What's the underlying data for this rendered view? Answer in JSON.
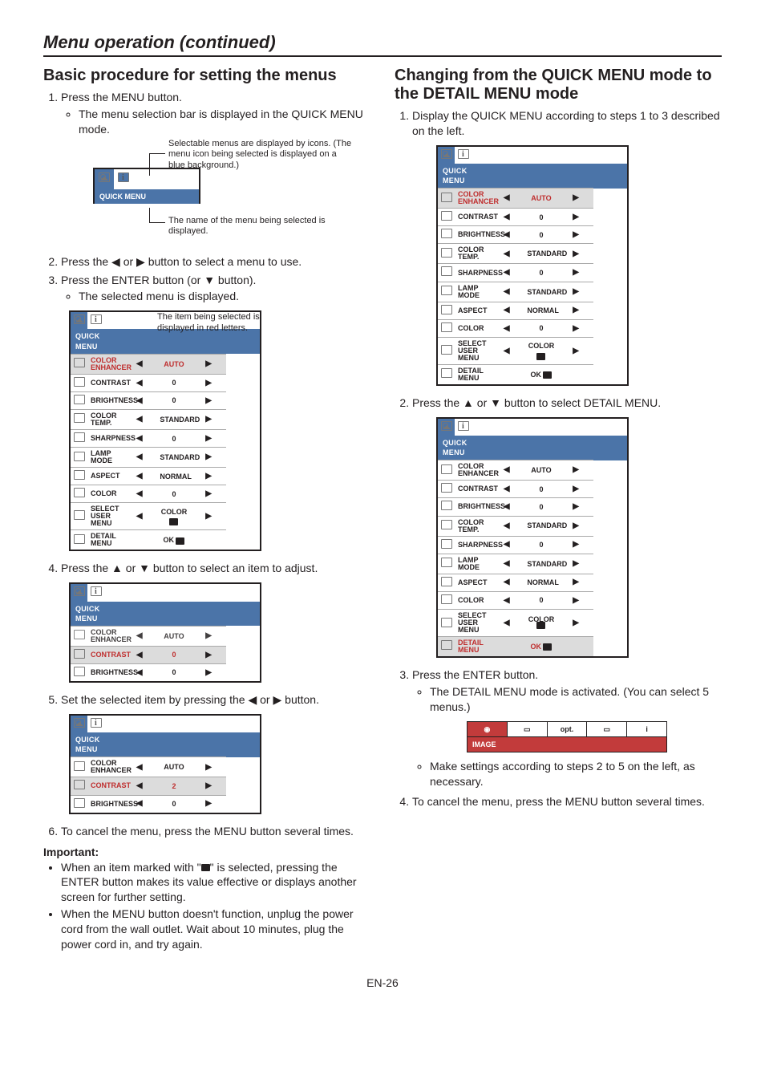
{
  "pageTitle": "Menu operation (continued)",
  "pageNumber": "EN-26",
  "left": {
    "heading": "Basic procedure for setting the menus",
    "step1": "Press the MENU button.",
    "step1_bullet": "The menu selection bar is displayed in the QUICK MENU mode.",
    "anno_top": "Selectable menus are displayed by icons. (The menu icon being selected is displayed on a blue background.)",
    "anno_bottom": "The name of the menu being selected is displayed.",
    "frag_title": "QUICK MENU",
    "step2_a": "Press the ",
    "step2_b": " or ",
    "step2_c": " button to select a menu to use.",
    "step3_a": "Press the ENTER button (or ",
    "step3_b": " button).",
    "step3_bullet": "The selected menu is displayed.",
    "anno_item_selected": "The item being selected is displayed in red letters.",
    "step4_a": "Press the ",
    "step4_b": " or ",
    "step4_c": " button to select an item to adjust.",
    "step5_a": "Set the selected item by pressing the ",
    "step5_b": " or ",
    "step5_c": " button.",
    "step6": "To cancel the menu, press the MENU button several times.",
    "important_label": "Important:",
    "important1_a": "When an item marked with \"",
    "important1_b": "\" is selected, pressing the ENTER button makes its value effective or displays another screen for further setting.",
    "important2": "When the MENU button doesn't function, unplug the power cord from the wall outlet. Wait about 10 minutes, plug the power cord in, and try again."
  },
  "right": {
    "heading": "Changing from the QUICK MENU mode to the DETAIL MENU mode",
    "step1": "Display the QUICK MENU according to steps 1 to 3 described on the left.",
    "step2_a": "Press the ",
    "step2_b": " or ",
    "step2_c": " button to select DETAIL MENU.",
    "step3": "Press the ENTER button.",
    "step3_bullet": "The DETAIL MENU mode is activated. (You can select 5 menus.)",
    "image_strip_label": "IMAGE",
    "strip_opt": "opt.",
    "step3_bullet2": "Make settings according to steps 2 to 5 on the left, as necessary.",
    "step4": "To cancel the menu, press the MENU button several times."
  },
  "menu": {
    "title": "QUICK MENU",
    "rows": [
      {
        "name": "COLOR ENHANCER",
        "val": "AUTO"
      },
      {
        "name": "CONTRAST",
        "val": "0"
      },
      {
        "name": "BRIGHTNESS",
        "val": "0"
      },
      {
        "name": "COLOR TEMP.",
        "val": "STANDARD"
      },
      {
        "name": "SHARPNESS",
        "val": "0"
      },
      {
        "name": "LAMP MODE",
        "val": "STANDARD"
      },
      {
        "name": "ASPECT",
        "val": "NORMAL"
      },
      {
        "name": "COLOR",
        "val": "0"
      },
      {
        "name": "SELECT USER MENU",
        "val": "COLOR"
      },
      {
        "name": "DETAIL MENU",
        "val": "OK"
      }
    ],
    "leftArrow": "◀",
    "rightArrow": "▶",
    "enterGlyph": "↵"
  },
  "menuStep4": {
    "title": "QUICK MENU",
    "rows": [
      {
        "name": "COLOR ENHANCER",
        "val": "AUTO"
      },
      {
        "name": "CONTRAST",
        "val": "0"
      },
      {
        "name": "BRIGHTNESS",
        "val": "0"
      }
    ]
  },
  "menuStep5": {
    "title": "QUICK MENU",
    "rows": [
      {
        "name": "COLOR ENHANCER",
        "val": "AUTO"
      },
      {
        "name": "CONTRAST",
        "val": "2"
      },
      {
        "name": "BRIGHTNESS",
        "val": "0"
      }
    ]
  },
  "glyphs": {
    "left": "◀",
    "right": "▶",
    "up": "▲",
    "down": "▼"
  }
}
